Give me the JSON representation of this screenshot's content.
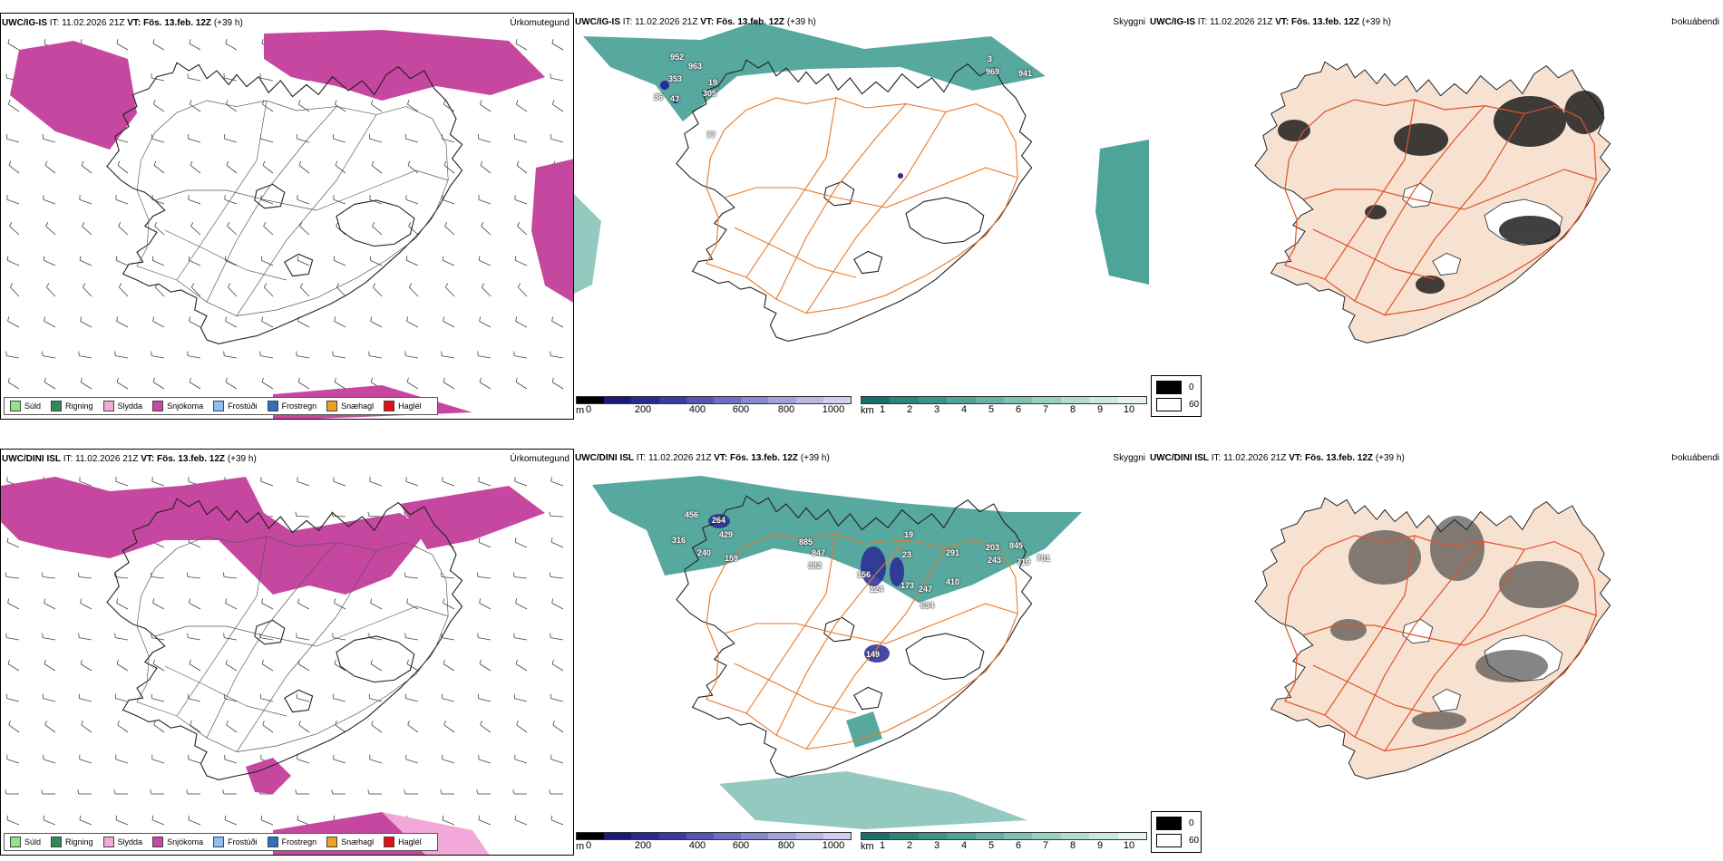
{
  "colors": {
    "snow": "#c6479f",
    "drizzle": "#8fe38f",
    "rain": "#2e8b57",
    "sleet": "#f2a8d8",
    "freezing_drizzle": "#8fbdf2",
    "freezing_rain": "#2f6fc0",
    "snow_grains": "#f0a020",
    "hail": "#e01010",
    "cloud_teal": "#3a9a8e",
    "road": "#e87a2a",
    "land": "#f7e2d2"
  },
  "rows": [
    {
      "model": "UWC/IG-IS",
      "it_label": "IT:",
      "it_value": "11.02.2026 21Z",
      "vt_label": "VT:",
      "vt_value": "Fös. 13.feb. 12Z",
      "lead": "(+39 h)"
    },
    {
      "model": "UWC/DINI ISL",
      "it_label": "IT:",
      "it_value": "11.02.2026 21Z",
      "vt_label": "VT:",
      "vt_value": "Fös. 13.feb. 12Z",
      "lead": "(+39 h)"
    }
  ],
  "panels": {
    "precip_type": "Úrkomutegund",
    "visibility": "Skyggni",
    "fog": "Þokuábendi"
  },
  "precip_legend": [
    {
      "label": "Súld",
      "color": "#8fe38f"
    },
    {
      "label": "Rigning",
      "color": "#2e8b57"
    },
    {
      "label": "Slydda",
      "color": "#f2a8d8"
    },
    {
      "label": "Snjókoma",
      "color": "#c6479f"
    },
    {
      "label": "Frostúði",
      "color": "#8fbdf2"
    },
    {
      "label": "Frostregn",
      "color": "#2f6fc0"
    },
    {
      "label": "Snæhagl",
      "color": "#f0a020"
    },
    {
      "label": "Haglél",
      "color": "#e01010"
    }
  ],
  "cloud_base_scale": {
    "unit": "m",
    "ticks": [
      "0",
      "200",
      "400",
      "600",
      "800",
      "1000"
    ],
    "colors": [
      "#000000",
      "#1a1a7a",
      "#2a2a95",
      "#3a3aa8",
      "#5555b5",
      "#6e6ec2",
      "#8888cf",
      "#a0a0da",
      "#b8b8e4",
      "#d0d0ee"
    ]
  },
  "visibility_scale": {
    "unit": "km",
    "ticks": [
      "1",
      "2",
      "3",
      "4",
      "5",
      "6",
      "7",
      "8",
      "9",
      "10"
    ],
    "colors": [
      "#17706a",
      "#2a8479",
      "#3b9488",
      "#50a396",
      "#67b2a5",
      "#7fc1b4",
      "#98cfc3",
      "#b2dcd2",
      "#cce9e1",
      "#e6f4f0"
    ]
  },
  "fog_scale": [
    {
      "label": "0",
      "color": "#000000"
    },
    {
      "label": "60",
      "color": "#ffffff"
    }
  ],
  "cloud_labels": {
    "top": [
      "952",
      "963",
      "353",
      "19",
      "305",
      "36",
      "43",
      "3",
      "969",
      "941",
      "77"
    ],
    "bottom": [
      "456",
      "264",
      "316",
      "429",
      "240",
      "159",
      "885",
      "847",
      "382",
      "19",
      "23",
      "156",
      "124",
      "173",
      "247",
      "291",
      "203",
      "845",
      "243",
      "719",
      "701",
      "410",
      "634",
      "149"
    ]
  }
}
